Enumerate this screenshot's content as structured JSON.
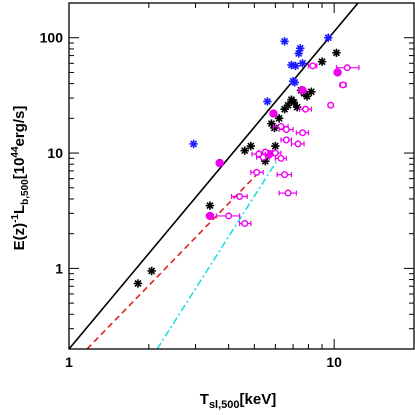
{
  "chart_data": {
    "type": "scatter",
    "title": "",
    "xlabel": {
      "main": "T",
      "sub": "sl,500",
      "rest": "[keV]"
    },
    "ylabel": {
      "pre": "E(z)",
      "pre_sup": "-1",
      "main": "L",
      "sub": "b,500",
      "rest1": "[10",
      "rest_sup": "44",
      "rest2": "erg/s]"
    },
    "xscale": "log",
    "yscale": "log",
    "xlim": [
      1,
      20
    ],
    "ylim": [
      0.2,
      200
    ],
    "x_ticks": [
      {
        "value": 1,
        "label": "1"
      },
      {
        "value": 10,
        "label": "10"
      }
    ],
    "y_ticks": [
      {
        "value": 1,
        "label": "1"
      },
      {
        "value": 10,
        "label": "10"
      },
      {
        "value": 100,
        "label": "100"
      }
    ],
    "lines": [
      {
        "style": "solid",
        "color": "#000000",
        "points": [
          [
            1.0,
            0.2
          ],
          [
            12.3,
            200
          ]
        ]
      },
      {
        "style": "dashed",
        "color": "#dd2222",
        "points": [
          [
            1.17,
            0.2
          ],
          [
            5.1,
            6.5
          ]
        ]
      },
      {
        "style": "dashdot",
        "color": "#22dddd",
        "points": [
          [
            2.15,
            0.2
          ],
          [
            6.2,
            9.2
          ]
        ]
      }
    ],
    "series": [
      {
        "marker": "asterisk",
        "color": "#000000",
        "points": [
          [
            1.82,
            0.74
          ],
          [
            2.05,
            0.95
          ],
          [
            3.4,
            3.5
          ],
          [
            4.6,
            10.5
          ],
          [
            4.85,
            11.5
          ],
          [
            5.5,
            8.5
          ],
          [
            5.8,
            18
          ],
          [
            5.95,
            16.5
          ],
          [
            6.0,
            11.5
          ],
          [
            6.2,
            20
          ],
          [
            6.5,
            24
          ],
          [
            6.7,
            26
          ],
          [
            6.9,
            29
          ],
          [
            7.05,
            27.5
          ],
          [
            7.25,
            25
          ],
          [
            7.5,
            35
          ],
          [
            7.7,
            33
          ],
          [
            7.9,
            31
          ],
          [
            8.2,
            34
          ],
          [
            9.0,
            62
          ],
          [
            10.2,
            74
          ]
        ]
      },
      {
        "marker": "asterisk",
        "color": "#1a1aff",
        "points": [
          [
            2.95,
            12
          ],
          [
            5.6,
            28
          ],
          [
            6.5,
            93
          ],
          [
            6.9,
            58
          ],
          [
            7.0,
            42
          ],
          [
            7.1,
            41
          ],
          [
            7.15,
            57
          ],
          [
            7.35,
            73
          ],
          [
            7.45,
            81
          ],
          [
            7.6,
            60
          ],
          [
            9.5,
            100
          ]
        ]
      },
      {
        "marker": "filled-circle",
        "color": "#ee00ee",
        "points": [
          [
            3.4,
            2.85
          ],
          [
            3.7,
            8.2
          ],
          [
            5.7,
            9.8
          ],
          [
            5.9,
            22
          ],
          [
            7.6,
            35
          ],
          [
            10.3,
            50
          ]
        ]
      },
      {
        "marker": "open-circle-errorbar",
        "color": "#ee00ee",
        "points": [
          {
            "x": 4.0,
            "y": 2.85,
            "xlo": 3.6,
            "xhi": 4.4
          },
          {
            "x": 4.4,
            "y": 4.2,
            "xlo": 4.1,
            "xhi": 4.7
          },
          {
            "x": 4.6,
            "y": 2.45,
            "xlo": 4.4,
            "xhi": 4.85
          },
          {
            "x": 5.1,
            "y": 6.8,
            "xlo": 4.85,
            "xhi": 5.4
          },
          {
            "x": 5.4,
            "y": 9.2,
            "xlo": 5.1,
            "xhi": 5.7
          },
          {
            "x": 5.5,
            "y": 10.2,
            "xlo": 5.2,
            "xhi": 5.85
          },
          {
            "x": 6.0,
            "y": 10.0,
            "xlo": 5.7,
            "xhi": 6.3
          },
          {
            "x": 5.2,
            "y": 9.8,
            "xlo": 4.9,
            "xhi": 5.5
          },
          {
            "x": 6.3,
            "y": 17,
            "xlo": 5.9,
            "xhi": 6.7
          },
          {
            "x": 6.6,
            "y": 16,
            "xlo": 6.2,
            "xhi": 7.0
          },
          {
            "x": 6.6,
            "y": 13,
            "xlo": 6.3,
            "xhi": 6.9
          },
          {
            "x": 6.3,
            "y": 9.0,
            "xlo": 6.0,
            "xhi": 6.6
          },
          {
            "x": 6.5,
            "y": 6.5,
            "xlo": 6.1,
            "xhi": 6.9
          },
          {
            "x": 6.7,
            "y": 4.5,
            "xlo": 6.2,
            "xhi": 7.2
          },
          {
            "x": 7.6,
            "y": 15,
            "xlo": 7.2,
            "xhi": 8.0
          },
          {
            "x": 7.3,
            "y": 12,
            "xlo": 6.9,
            "xhi": 7.7
          },
          {
            "x": 7.8,
            "y": 24,
            "xlo": 7.4,
            "xhi": 8.2
          },
          {
            "x": 8.3,
            "y": 57,
            "xlo": 8.0,
            "xhi": 8.6
          },
          {
            "x": 9.7,
            "y": 26,
            "xlo": 9.5,
            "xhi": 9.9
          },
          {
            "x": 10.8,
            "y": 39,
            "xlo": 10.5,
            "xhi": 11.1
          },
          {
            "x": 11.2,
            "y": 55,
            "xlo": 10.2,
            "xhi": 12.4
          }
        ]
      }
    ]
  }
}
